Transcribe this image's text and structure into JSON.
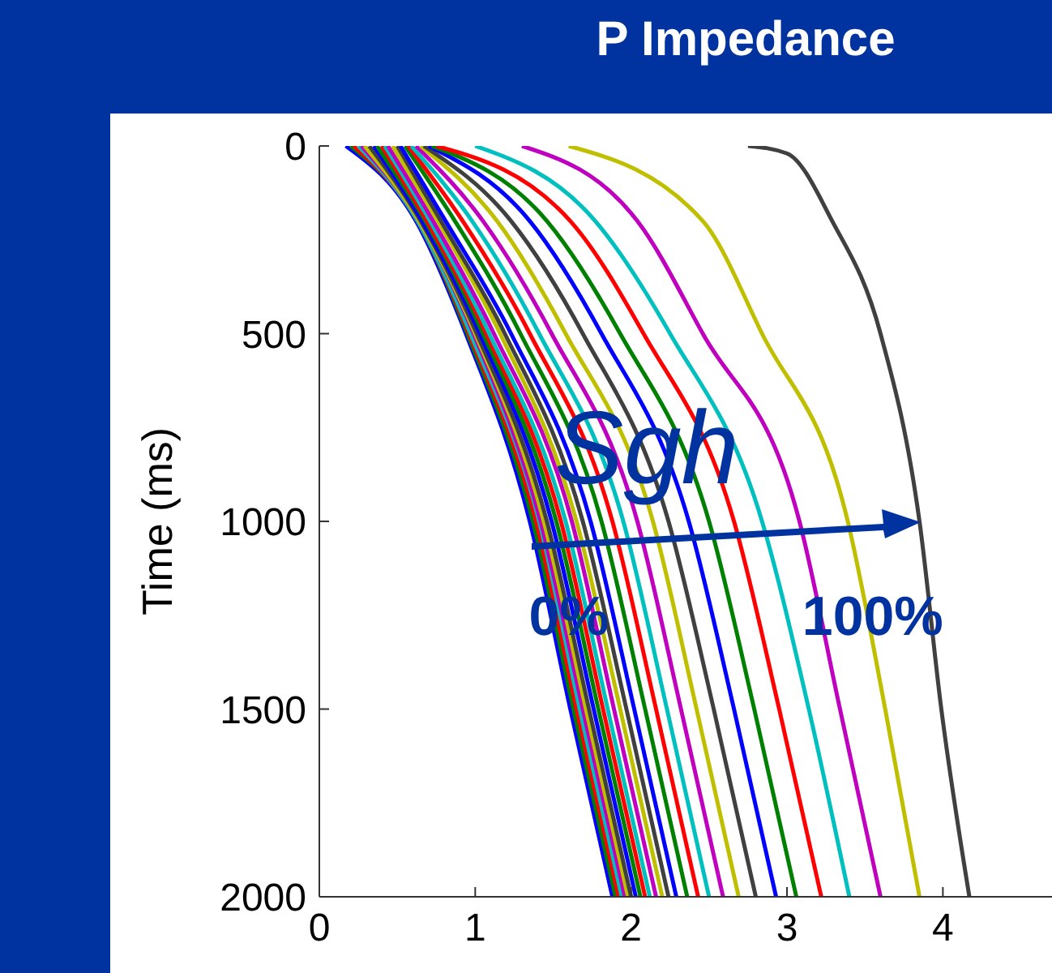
{
  "chart_data": {
    "type": "line",
    "title": "P Impedance",
    "ylabel": "Time (ms)",
    "xlim": [
      0,
      4.7
    ],
    "xticks": [
      0,
      1,
      2,
      3,
      4
    ],
    "ylim": [
      2000,
      0
    ],
    "yticks": [
      0,
      500,
      1000,
      1500,
      2000
    ],
    "grid": false,
    "annotations": [
      {
        "text": "Sgh",
        "x": 2.1,
        "y": 800
      },
      {
        "text": "0%",
        "x": 1.6,
        "y": 1250
      },
      {
        "text": "100%",
        "x": 3.55,
        "y": 1250
      }
    ],
    "series": [
      {
        "color": "#0000ff",
        "x": [
          0.17,
          0.62,
          0.94,
          1.35,
          1.61,
          1.88
        ],
        "values": [
          0,
          200,
          500,
          1000,
          1500,
          2000
        ]
      },
      {
        "color": "#008000",
        "x": [
          0.2,
          0.63,
          0.95,
          1.37,
          1.63,
          1.9
        ],
        "values": [
          0,
          200,
          500,
          1000,
          1500,
          2000
        ]
      },
      {
        "color": "#ff0000",
        "x": [
          0.22,
          0.63,
          0.96,
          1.39,
          1.65,
          1.92
        ],
        "values": [
          0,
          200,
          500,
          1000,
          1500,
          2000
        ]
      },
      {
        "color": "#00bfbf",
        "x": [
          0.25,
          0.63,
          0.97,
          1.41,
          1.67,
          1.94
        ],
        "values": [
          0,
          200,
          500,
          1000,
          1500,
          2000
        ]
      },
      {
        "color": "#bf00bf",
        "x": [
          0.27,
          0.64,
          0.99,
          1.42,
          1.69,
          1.96
        ],
        "values": [
          0,
          200,
          500,
          1000,
          1500,
          2000
        ]
      },
      {
        "color": "#bfbf00",
        "x": [
          0.29,
          0.64,
          1.0,
          1.44,
          1.71,
          1.98
        ],
        "values": [
          0,
          200,
          500,
          1000,
          1500,
          2000
        ]
      },
      {
        "color": "#404040",
        "x": [
          0.32,
          0.65,
          1.01,
          1.46,
          1.73,
          2.0
        ],
        "values": [
          0,
          200,
          500,
          1000,
          1500,
          2000
        ]
      },
      {
        "color": "#0000ff",
        "x": [
          0.35,
          0.66,
          1.03,
          1.49,
          1.76,
          2.03
        ],
        "values": [
          0,
          200,
          500,
          1000,
          1500,
          2000
        ]
      },
      {
        "color": "#008000",
        "x": [
          0.37,
          0.68,
          1.05,
          1.52,
          1.79,
          2.06
        ],
        "values": [
          0,
          200,
          500,
          1000,
          1500,
          2000
        ]
      },
      {
        "color": "#ff0000",
        "x": [
          0.4,
          0.69,
          1.07,
          1.55,
          1.82,
          2.09
        ],
        "values": [
          0,
          200,
          500,
          1000,
          1500,
          2000
        ]
      },
      {
        "color": "#00bfbf",
        "x": [
          0.42,
          0.71,
          1.09,
          1.58,
          1.85,
          2.12
        ],
        "values": [
          0,
          200,
          500,
          1000,
          1500,
          2000
        ]
      },
      {
        "color": "#bf00bf",
        "x": [
          0.44,
          0.73,
          1.12,
          1.62,
          1.89,
          2.16
        ],
        "values": [
          0,
          200,
          500,
          1000,
          1500,
          2000
        ]
      },
      {
        "color": "#bfbf00",
        "x": [
          0.47,
          0.76,
          1.16,
          1.65,
          1.93,
          2.2
        ],
        "values": [
          0,
          200,
          500,
          1000,
          1500,
          2000
        ]
      },
      {
        "color": "#404040",
        "x": [
          0.5,
          0.78,
          1.19,
          1.69,
          1.97,
          2.24
        ],
        "values": [
          0,
          200,
          500,
          1000,
          1500,
          2000
        ]
      },
      {
        "color": "#0000ff",
        "x": [
          0.52,
          0.81,
          1.23,
          1.74,
          2.02,
          2.29
        ],
        "values": [
          0,
          200,
          500,
          1000,
          1500,
          2000
        ]
      },
      {
        "color": "#008000",
        "x": [
          0.55,
          0.87,
          1.29,
          1.81,
          2.09,
          2.36
        ],
        "values": [
          0,
          200,
          500,
          1000,
          1500,
          2000
        ]
      },
      {
        "color": "#ff0000",
        "x": [
          0.57,
          0.92,
          1.35,
          1.88,
          2.16,
          2.43
        ],
        "values": [
          0,
          200,
          500,
          1000,
          1500,
          2000
        ]
      },
      {
        "color": "#00bfbf",
        "x": [
          0.59,
          0.98,
          1.41,
          1.95,
          2.23,
          2.5
        ],
        "values": [
          0,
          200,
          500,
          1000,
          1500,
          2000
        ]
      },
      {
        "color": "#bf00bf",
        "x": [
          0.62,
          1.05,
          1.49,
          2.04,
          2.32,
          2.59
        ],
        "values": [
          0,
          200,
          500,
          1000,
          1500,
          2000
        ]
      },
      {
        "color": "#bfbf00",
        "x": [
          0.65,
          1.14,
          1.58,
          2.14,
          2.42,
          2.69
        ],
        "values": [
          0,
          200,
          500,
          1000,
          1500,
          2000
        ]
      },
      {
        "color": "#404040",
        "x": [
          0.67,
          1.23,
          1.69,
          2.24,
          2.53,
          2.8
        ],
        "values": [
          0,
          200,
          500,
          1000,
          1500,
          2000
        ]
      },
      {
        "color": "#0000ff",
        "x": [
          0.7,
          1.35,
          1.81,
          2.37,
          2.66,
          2.93
        ],
        "values": [
          0,
          200,
          500,
          1000,
          1500,
          2000
        ]
      },
      {
        "color": "#008000",
        "x": [
          0.72,
          1.46,
          1.93,
          2.5,
          2.79,
          3.06
        ],
        "values": [
          0,
          200,
          500,
          1000,
          1500,
          2000
        ]
      },
      {
        "color": "#ff0000",
        "x": [
          0.75,
          1.61,
          2.08,
          2.66,
          2.95,
          3.22
        ],
        "values": [
          0,
          200,
          500,
          1000,
          1500,
          2000
        ]
      },
      {
        "color": "#00bfbf",
        "x": [
          1.0,
          1.77,
          2.25,
          2.84,
          3.14,
          3.4
        ],
        "values": [
          0,
          200,
          500,
          1000,
          1500,
          2000
        ]
      },
      {
        "color": "#bf00bf",
        "x": [
          1.3,
          2.04,
          2.46,
          3.08,
          3.34,
          3.6
        ],
        "values": [
          0,
          200,
          500,
          1000,
          1500,
          2000
        ]
      },
      {
        "color": "#bfbf00",
        "x": [
          1.6,
          2.46,
          2.84,
          3.39,
          3.63,
          3.85
        ],
        "values": [
          0,
          200,
          500,
          1000,
          1500,
          2000
        ]
      },
      {
        "color": "#404040",
        "x": [
          2.75,
          3.0,
          3.29,
          3.6,
          3.85,
          3.99,
          4.17
        ],
        "values": [
          0,
          20,
          200,
          500,
          1000,
          1500,
          2000
        ]
      }
    ]
  }
}
